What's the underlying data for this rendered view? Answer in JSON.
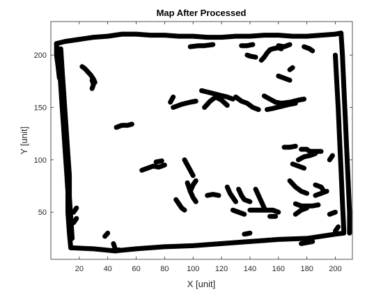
{
  "chart_data": {
    "type": "scatter",
    "title": "Map After Processed",
    "xlabel": "X [unit]",
    "ylabel": "Y [unit]",
    "xlim": [
      0,
      212
    ],
    "ylim": [
      5,
      232
    ],
    "grid": false,
    "xticks": [
      20,
      40,
      60,
      80,
      100,
      120,
      140,
      160,
      180,
      200
    ],
    "yticks": [
      50,
      100,
      150,
      200
    ],
    "series": [
      {
        "marker_color": "#000000",
        "polylines": [
          [
            [
              4,
              211
            ],
            [
              10,
              213
            ],
            [
              20,
              215
            ],
            [
              30,
              217
            ],
            [
              40,
              218
            ],
            [
              50,
              220
            ],
            [
              60,
              220
            ],
            [
              70,
              219
            ],
            [
              80,
              219
            ],
            [
              90,
              218
            ],
            [
              100,
              218
            ],
            [
              110,
              217
            ],
            [
              120,
              217
            ],
            [
              130,
              218
            ],
            [
              140,
              218
            ],
            [
              150,
              219
            ],
            [
              160,
              219
            ],
            [
              170,
              218
            ],
            [
              180,
              218
            ],
            [
              190,
              219
            ],
            [
              200,
              220
            ],
            [
              204,
              221
            ]
          ],
          [
            [
              4,
              210
            ],
            [
              6,
              190
            ],
            [
              7,
              170
            ],
            [
              8,
              150
            ],
            [
              9,
              130
            ],
            [
              10,
              110
            ],
            [
              11,
              90
            ],
            [
              12,
              70
            ],
            [
              12,
              50
            ],
            [
              13,
              30
            ],
            [
              14,
              16
            ]
          ],
          [
            [
              7,
              206
            ],
            [
              8,
              185
            ],
            [
              9,
              165
            ],
            [
              10,
              145
            ],
            [
              11,
              125
            ],
            [
              12,
              105
            ],
            [
              13,
              85
            ],
            [
              13,
              65
            ],
            [
              14,
              45
            ],
            [
              15,
              25
            ]
          ],
          [
            [
              14,
              16
            ],
            [
              30,
              15
            ],
            [
              45,
              13
            ],
            [
              60,
              15
            ],
            [
              80,
              17
            ],
            [
              100,
              18
            ],
            [
              120,
              20
            ],
            [
              140,
              22
            ],
            [
              160,
              24
            ],
            [
              180,
              25
            ],
            [
              200,
              29
            ],
            [
              206,
              30
            ]
          ],
          [
            [
              204,
              221
            ],
            [
              205,
              200
            ],
            [
              206,
              170
            ],
            [
              207,
              140
            ],
            [
              208,
              110
            ],
            [
              209,
              80
            ],
            [
              210,
              50
            ],
            [
              210,
              30
            ]
          ],
          [
            [
              200,
              200
            ],
            [
              201,
              175
            ],
            [
              202,
              150
            ],
            [
              203,
              120
            ],
            [
              204,
              90
            ],
            [
              205,
              60
            ],
            [
              206,
              32
            ]
          ],
          [
            [
              4,
              211
            ],
            [
              4,
              200
            ],
            [
              5,
              190
            ],
            [
              6,
              178
            ]
          ],
          [
            [
              44,
              20
            ],
            [
              45,
              16
            ],
            [
              46,
              13
            ],
            [
              48,
              14
            ]
          ]
        ],
        "blobs": [
          [
            [
              22,
              189
            ],
            [
              24,
              187
            ],
            [
              26,
              184
            ],
            [
              28,
              181
            ],
            [
              30,
              177
            ],
            [
              31,
              174
            ]
          ],
          [
            [
              29,
              176
            ],
            [
              30,
              172
            ],
            [
              29,
              168
            ]
          ],
          [
            [
              86,
              150
            ],
            [
              92,
              153
            ],
            [
              98,
              155
            ],
            [
              102,
              156
            ]
          ],
          [
            [
              106,
              166
            ],
            [
              112,
              164
            ],
            [
              118,
              162
            ],
            [
              124,
              160
            ],
            [
              128,
              158
            ]
          ],
          [
            [
              108,
              150
            ],
            [
              112,
              156
            ],
            [
              116,
              160
            ],
            [
              120,
              157
            ],
            [
              124,
              152
            ]
          ],
          [
            [
              130,
              160
            ],
            [
              134,
              156
            ],
            [
              138,
              154
            ],
            [
              142,
              150
            ],
            [
              146,
              148
            ]
          ],
          [
            [
              150,
              161
            ],
            [
              154,
              158
            ],
            [
              158,
              155
            ],
            [
              162,
              154
            ],
            [
              168,
              155
            ],
            [
              174,
              157
            ],
            [
              178,
              158
            ]
          ],
          [
            [
              152,
              148
            ],
            [
              156,
              149
            ],
            [
              162,
              151
            ],
            [
              168,
              153
            ],
            [
              172,
              154
            ]
          ],
          [
            [
              46,
              131
            ],
            [
              50,
              133
            ],
            [
              54,
              133
            ],
            [
              57,
              134
            ]
          ],
          [
            [
              98,
              208
            ],
            [
              104,
              209
            ],
            [
              108,
              209
            ],
            [
              114,
              210
            ]
          ],
          [
            [
              134,
              209
            ],
            [
              138,
              209
            ],
            [
              142,
              210
            ]
          ],
          [
            [
              160,
              209
            ],
            [
              164,
              208
            ],
            [
              168,
              210
            ]
          ],
          [
            [
              178,
              208
            ],
            [
              182,
              206
            ],
            [
              184,
              204
            ]
          ],
          [
            [
              160,
              180
            ],
            [
              164,
              178
            ],
            [
              168,
              176
            ]
          ],
          [
            [
              148,
              195
            ],
            [
              150,
              198
            ],
            [
              152,
              202
            ],
            [
              154,
              205
            ],
            [
              156,
              206
            ],
            [
              160,
              207
            ],
            [
              162,
              206
            ]
          ],
          [
            [
              168,
              186
            ],
            [
              170,
              188
            ]
          ],
          [
            [
              164,
              112
            ],
            [
              168,
              112
            ],
            [
              172,
              113
            ]
          ],
          [
            [
              176,
              110
            ],
            [
              180,
              110
            ],
            [
              182,
              108
            ],
            [
              186,
              108
            ],
            [
              190,
              108
            ]
          ],
          [
            [
              174,
              100
            ],
            [
              178,
              103
            ],
            [
              182,
              104
            ],
            [
              186,
              106
            ]
          ],
          [
            [
              64,
              90
            ],
            [
              68,
              92
            ],
            [
              72,
              94
            ],
            [
              76,
              93
            ],
            [
              80,
              95
            ]
          ],
          [
            [
              74,
              98
            ],
            [
              78,
              99
            ]
          ],
          [
            [
              94,
              100
            ],
            [
              96,
              95
            ],
            [
              98,
              90
            ],
            [
              100,
              85
            ]
          ],
          [
            [
              96,
              78
            ],
            [
              98,
              70
            ],
            [
              100,
              64
            ],
            [
              102,
              60
            ]
          ],
          [
            [
              88,
              62
            ],
            [
              90,
              58
            ],
            [
              92,
              54
            ],
            [
              94,
              52
            ]
          ],
          [
            [
              98,
              70
            ],
            [
              100,
              76
            ],
            [
              102,
              80
            ]
          ],
          [
            [
              110,
              66
            ],
            [
              114,
              67
            ],
            [
              118,
              66
            ]
          ],
          [
            [
              124,
              74
            ],
            [
              126,
              68
            ],
            [
              128,
              64
            ],
            [
              130,
              60
            ]
          ],
          [
            [
              132,
              72
            ],
            [
              134,
              66
            ],
            [
              136,
              62
            ],
            [
              140,
              60
            ]
          ],
          [
            [
              144,
              72
            ],
            [
              146,
              66
            ],
            [
              148,
              60
            ],
            [
              150,
              54
            ]
          ],
          [
            [
              140,
              52
            ],
            [
              144,
              52
            ],
            [
              148,
              52
            ],
            [
              152,
              52
            ],
            [
              156,
              52
            ],
            [
              160,
              50
            ]
          ],
          [
            [
              128,
              52
            ],
            [
              132,
              50
            ],
            [
              136,
              48
            ]
          ],
          [
            [
              154,
              46
            ],
            [
              158,
              46
            ]
          ],
          [
            [
              170,
              96
            ],
            [
              174,
              94
            ],
            [
              178,
              92
            ]
          ],
          [
            [
              168,
              80
            ],
            [
              172,
              74
            ],
            [
              176,
              70
            ],
            [
              180,
              68
            ]
          ],
          [
            [
              172,
              58
            ],
            [
              176,
              56
            ],
            [
              180,
              56
            ],
            [
              184,
              56
            ],
            [
              188,
              57
            ]
          ],
          [
            [
              172,
              48
            ],
            [
              176,
              52
            ],
            [
              180,
              54
            ]
          ],
          [
            [
              186,
              66
            ],
            [
              190,
              68
            ],
            [
              194,
              70
            ]
          ],
          [
            [
              186,
              76
            ],
            [
              190,
              74
            ],
            [
              192,
              70
            ]
          ],
          [
            [
              196,
              48
            ],
            [
              200,
              50
            ]
          ],
          [
            [
              136,
              29
            ],
            [
              140,
              30
            ]
          ],
          [
            [
              176,
              20
            ],
            [
              180,
              21
            ],
            [
              184,
              22
            ]
          ],
          [
            [
              16,
              50
            ],
            [
              18,
              54
            ]
          ],
          [
            [
              16,
              40
            ],
            [
              18,
              44
            ]
          ],
          [
            [
              38,
              27
            ],
            [
              40,
              30
            ]
          ],
          [
            [
              196,
              100
            ],
            [
              198,
              104
            ]
          ],
          [
            [
              200,
              32
            ],
            [
              202,
              36
            ]
          ],
          [
            [
              84,
              155
            ],
            [
              86,
              160
            ]
          ],
          [
            [
              138,
              200
            ],
            [
              140,
              199
            ],
            [
              144,
              198
            ]
          ]
        ]
      }
    ]
  }
}
